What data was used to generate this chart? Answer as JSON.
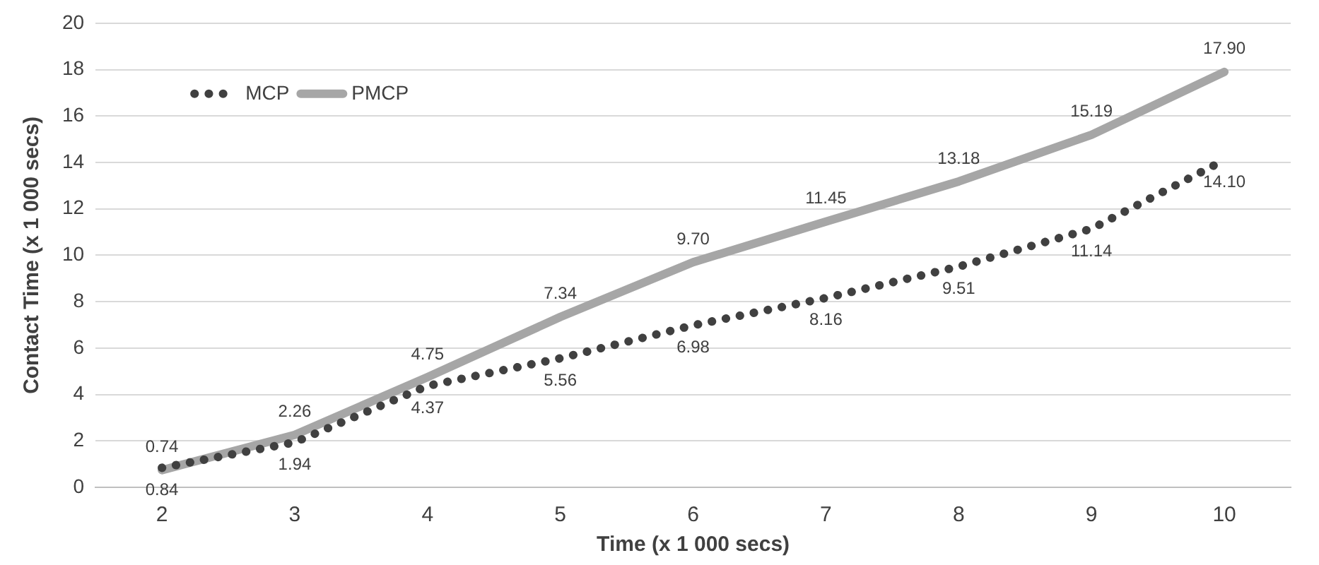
{
  "chart_data": {
    "type": "line",
    "xlabel": "Time (x 1 000 secs)",
    "ylabel": "Contact Time (x 1 000 secs)",
    "categories": [
      "2",
      "3",
      "4",
      "5",
      "6",
      "7",
      "8",
      "9",
      "10"
    ],
    "series": [
      {
        "name": "MCP",
        "color": "#404040",
        "line_style": "dotted",
        "values": [
          0.84,
          1.94,
          4.37,
          5.56,
          6.98,
          8.16,
          9.51,
          11.14,
          14.1
        ],
        "value_labels": [
          "0.84",
          "1.94",
          "4.37",
          "5.56",
          "6.98",
          "8.16",
          "9.51",
          "11.14",
          "14.10"
        ]
      },
      {
        "name": "PMCP",
        "color": "#a6a6a6",
        "line_style": "solid",
        "values": [
          0.74,
          2.26,
          4.75,
          7.34,
          9.7,
          11.45,
          13.18,
          15.19,
          17.9
        ],
        "value_labels": [
          "0.74",
          "2.26",
          "4.75",
          "7.34",
          "9.70",
          "11.45",
          "13.18",
          "15.19",
          "17.90"
        ]
      }
    ],
    "ylim": [
      0,
      20
    ],
    "yticks": [
      0,
      2,
      4,
      6,
      8,
      10,
      12,
      14,
      16,
      18,
      20
    ],
    "grid": "y",
    "legend": "top left",
    "marker": "none"
  }
}
